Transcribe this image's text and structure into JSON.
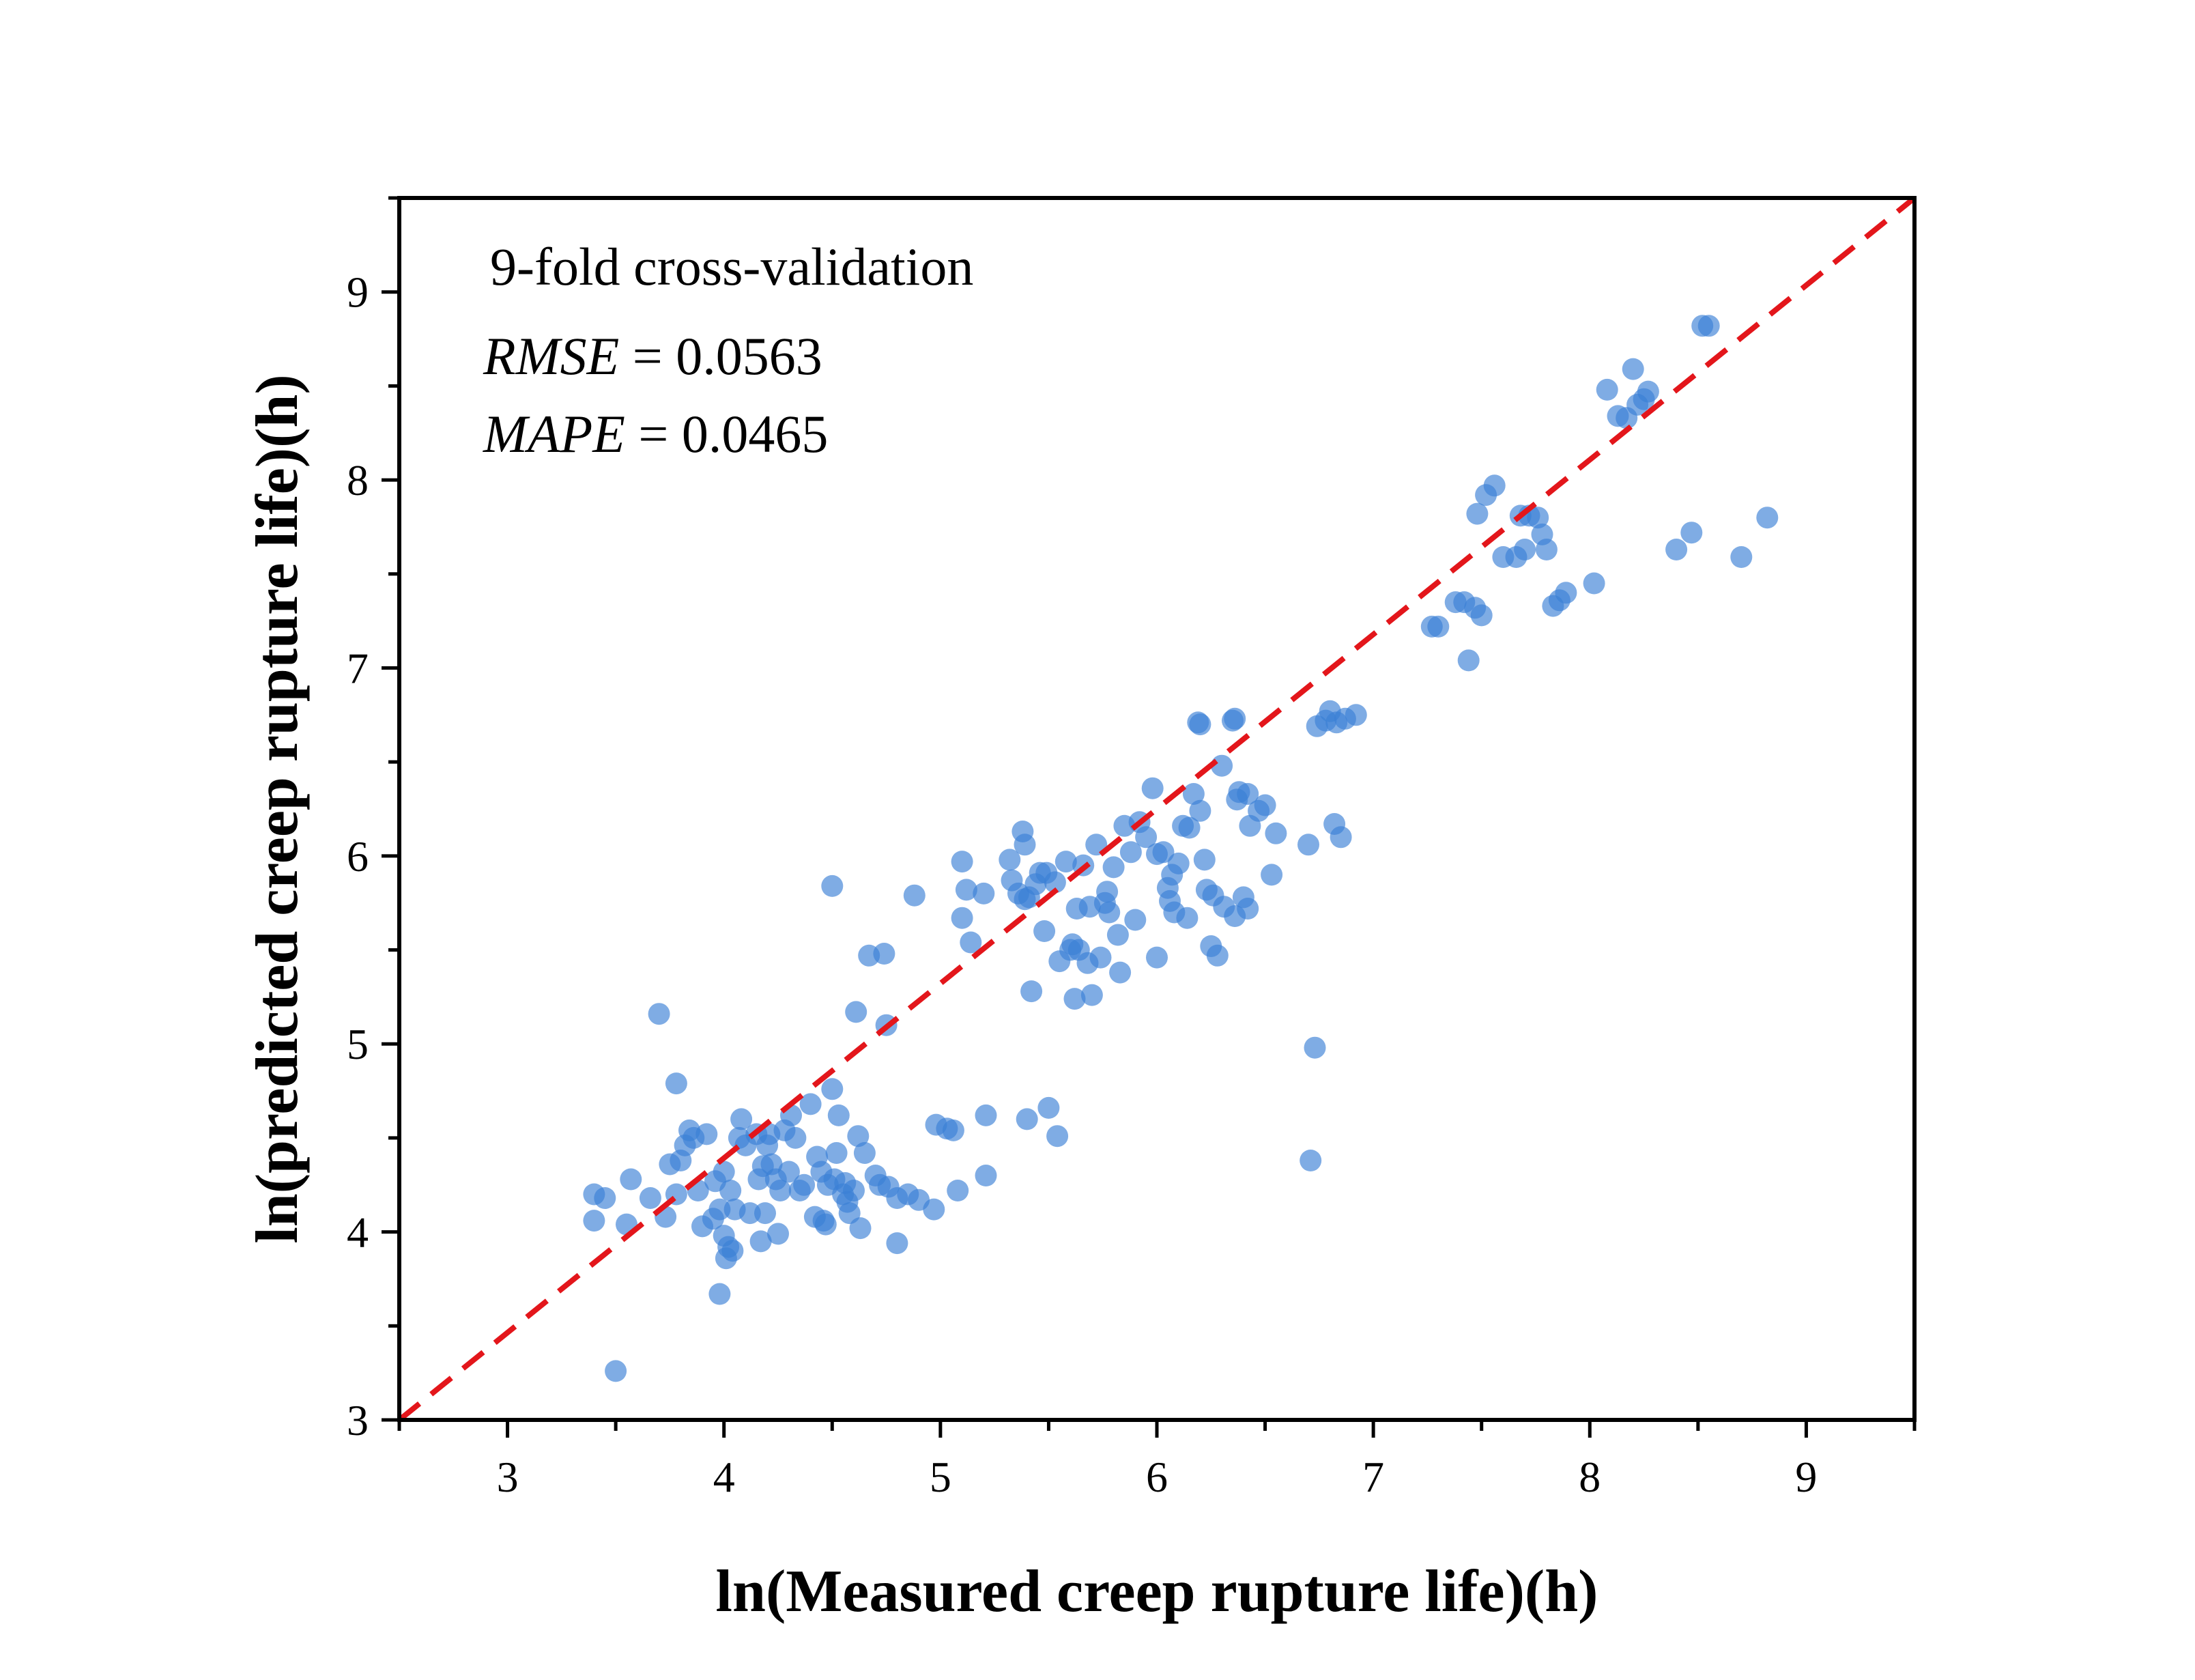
{
  "chart_data": {
    "type": "scatter",
    "xlabel": "ln(Measured creep rupture life)(h)",
    "ylabel": "ln(predicted creep rupture life)(h)",
    "xlim": [
      2.5,
      9.5
    ],
    "ylim": [
      3,
      9.5
    ],
    "xticks": [
      "3",
      "4",
      "5",
      "6",
      "7",
      "8",
      "9"
    ],
    "yticks": [
      "3",
      "4",
      "5",
      "6",
      "7",
      "8",
      "9"
    ],
    "grid": false,
    "annotations": {
      "title_line": "9-fold cross-validation",
      "rmse_label": "RMSE",
      "rmse_value": " = 0.0563",
      "mape_label": "MAPE",
      "mape_value": " = 0.0465"
    },
    "reference_line": {
      "x": [
        2.5,
        9.5
      ],
      "y": [
        3,
        9.5
      ],
      "style": "dashed",
      "color": "#e3161b"
    },
    "point_color": "#3a7fd5",
    "points": [
      [
        3.4,
        4.2
      ],
      [
        3.4,
        4.06
      ],
      [
        3.45,
        4.18
      ],
      [
        3.5,
        3.26
      ],
      [
        3.55,
        4.04
      ],
      [
        3.57,
        4.28
      ],
      [
        3.66,
        4.18
      ],
      [
        3.7,
        5.16
      ],
      [
        3.73,
        4.08
      ],
      [
        3.75,
        4.36
      ],
      [
        3.78,
        4.79
      ],
      [
        3.78,
        4.2
      ],
      [
        3.8,
        4.38
      ],
      [
        3.82,
        4.46
      ],
      [
        3.84,
        4.54
      ],
      [
        3.86,
        4.5
      ],
      [
        3.88,
        4.22
      ],
      [
        3.9,
        4.03
      ],
      [
        3.92,
        4.52
      ],
      [
        3.95,
        4.07
      ],
      [
        3.96,
        4.27
      ],
      [
        3.98,
        4.12
      ],
      [
        3.98,
        3.67
      ],
      [
        4.0,
        3.98
      ],
      [
        4.0,
        4.32
      ],
      [
        4.01,
        3.86
      ],
      [
        4.02,
        3.92
      ],
      [
        4.03,
        4.22
      ],
      [
        4.04,
        3.9
      ],
      [
        4.05,
        4.12
      ],
      [
        4.07,
        4.5
      ],
      [
        4.08,
        4.6
      ],
      [
        4.1,
        4.46
      ],
      [
        4.12,
        4.1
      ],
      [
        4.15,
        4.52
      ],
      [
        4.16,
        4.28
      ],
      [
        4.17,
        3.95
      ],
      [
        4.18,
        4.35
      ],
      [
        4.19,
        4.1
      ],
      [
        4.2,
        4.46
      ],
      [
        4.21,
        4.52
      ],
      [
        4.22,
        4.36
      ],
      [
        4.24,
        4.28
      ],
      [
        4.25,
        3.99
      ],
      [
        4.26,
        4.22
      ],
      [
        4.28,
        4.54
      ],
      [
        4.3,
        4.32
      ],
      [
        4.31,
        4.62
      ],
      [
        4.33,
        4.5
      ],
      [
        4.35,
        4.22
      ],
      [
        4.37,
        4.25
      ],
      [
        4.4,
        4.68
      ],
      [
        4.42,
        4.08
      ],
      [
        4.43,
        4.4
      ],
      [
        4.45,
        4.32
      ],
      [
        4.46,
        4.06
      ],
      [
        4.47,
        4.04
      ],
      [
        4.48,
        4.25
      ],
      [
        4.5,
        5.84
      ],
      [
        4.5,
        4.76
      ],
      [
        4.51,
        4.28
      ],
      [
        4.52,
        4.42
      ],
      [
        4.53,
        4.62
      ],
      [
        4.55,
        4.2
      ],
      [
        4.56,
        4.26
      ],
      [
        4.57,
        4.16
      ],
      [
        4.58,
        4.1
      ],
      [
        4.6,
        4.22
      ],
      [
        4.61,
        5.17
      ],
      [
        4.62,
        4.51
      ],
      [
        4.63,
        4.02
      ],
      [
        4.65,
        4.42
      ],
      [
        4.67,
        5.47
      ],
      [
        4.7,
        4.3
      ],
      [
        4.72,
        4.25
      ],
      [
        4.74,
        5.48
      ],
      [
        4.75,
        5.1
      ],
      [
        4.76,
        4.24
      ],
      [
        4.8,
        4.18
      ],
      [
        4.8,
        3.94
      ],
      [
        4.85,
        4.2
      ],
      [
        4.88,
        5.79
      ],
      [
        4.9,
        4.17
      ],
      [
        4.97,
        4.12
      ],
      [
        4.98,
        4.57
      ],
      [
        5.03,
        4.55
      ],
      [
        5.06,
        4.54
      ],
      [
        5.08,
        4.22
      ],
      [
        5.1,
        5.97
      ],
      [
        5.1,
        5.67
      ],
      [
        5.12,
        5.82
      ],
      [
        5.14,
        5.54
      ],
      [
        5.2,
        5.8
      ],
      [
        5.21,
        4.3
      ],
      [
        5.21,
        4.62
      ],
      [
        5.32,
        5.98
      ],
      [
        5.33,
        5.87
      ],
      [
        5.36,
        5.8
      ],
      [
        5.38,
        6.13
      ],
      [
        5.39,
        6.06
      ],
      [
        5.39,
        5.77
      ],
      [
        5.4,
        4.6
      ],
      [
        5.41,
        5.78
      ],
      [
        5.42,
        5.28
      ],
      [
        5.44,
        5.85
      ],
      [
        5.46,
        5.91
      ],
      [
        5.48,
        5.6
      ],
      [
        5.49,
        5.91
      ],
      [
        5.5,
        4.66
      ],
      [
        5.53,
        5.86
      ],
      [
        5.54,
        4.51
      ],
      [
        5.55,
        5.44
      ],
      [
        5.58,
        5.97
      ],
      [
        5.6,
        5.5
      ],
      [
        5.61,
        5.53
      ],
      [
        5.62,
        5.24
      ],
      [
        5.63,
        5.72
      ],
      [
        5.64,
        5.5
      ],
      [
        5.66,
        5.95
      ],
      [
        5.68,
        5.43
      ],
      [
        5.69,
        5.73
      ],
      [
        5.7,
        5.26
      ],
      [
        5.72,
        6.06
      ],
      [
        5.74,
        5.46
      ],
      [
        5.76,
        5.75
      ],
      [
        5.77,
        5.81
      ],
      [
        5.78,
        5.7
      ],
      [
        5.8,
        5.94
      ],
      [
        5.82,
        5.58
      ],
      [
        5.83,
        5.38
      ],
      [
        5.85,
        6.16
      ],
      [
        5.88,
        6.02
      ],
      [
        5.9,
        5.66
      ],
      [
        5.92,
        6.18
      ],
      [
        5.95,
        6.1
      ],
      [
        5.98,
        6.36
      ],
      [
        6.0,
        5.46
      ],
      [
        6.0,
        6.01
      ],
      [
        6.03,
        6.02
      ],
      [
        6.05,
        5.83
      ],
      [
        6.06,
        5.76
      ],
      [
        6.07,
        5.9
      ],
      [
        6.08,
        5.7
      ],
      [
        6.1,
        5.96
      ],
      [
        6.12,
        6.16
      ],
      [
        6.14,
        5.67
      ],
      [
        6.15,
        6.15
      ],
      [
        6.17,
        6.33
      ],
      [
        6.19,
        6.71
      ],
      [
        6.2,
        6.7
      ],
      [
        6.2,
        6.24
      ],
      [
        6.22,
        5.98
      ],
      [
        6.23,
        5.82
      ],
      [
        6.25,
        5.52
      ],
      [
        6.26,
        5.79
      ],
      [
        6.28,
        5.47
      ],
      [
        6.3,
        6.48
      ],
      [
        6.31,
        5.73
      ],
      [
        6.35,
        6.72
      ],
      [
        6.36,
        6.73
      ],
      [
        6.36,
        5.68
      ],
      [
        6.37,
        6.3
      ],
      [
        6.38,
        6.34
      ],
      [
        6.4,
        5.78
      ],
      [
        6.42,
        5.72
      ],
      [
        6.42,
        6.33
      ],
      [
        6.43,
        6.16
      ],
      [
        6.47,
        6.24
      ],
      [
        6.5,
        6.27
      ],
      [
        6.53,
        5.9
      ],
      [
        6.55,
        6.12
      ],
      [
        6.7,
        6.06
      ],
      [
        6.71,
        4.38
      ],
      [
        6.73,
        4.98
      ],
      [
        6.74,
        6.69
      ],
      [
        6.78,
        6.72
      ],
      [
        6.8,
        6.77
      ],
      [
        6.82,
        6.17
      ],
      [
        6.83,
        6.71
      ],
      [
        6.85,
        6.1
      ],
      [
        6.87,
        6.73
      ],
      [
        6.92,
        6.75
      ],
      [
        7.27,
        7.22
      ],
      [
        7.3,
        7.22
      ],
      [
        7.38,
        7.35
      ],
      [
        7.42,
        7.35
      ],
      [
        7.44,
        7.04
      ],
      [
        7.47,
        7.32
      ],
      [
        7.48,
        7.82
      ],
      [
        7.5,
        7.28
      ],
      [
        7.52,
        7.92
      ],
      [
        7.56,
        7.97
      ],
      [
        7.6,
        7.59
      ],
      [
        7.66,
        7.59
      ],
      [
        7.68,
        7.81
      ],
      [
        7.7,
        7.63
      ],
      [
        7.72,
        7.81
      ],
      [
        7.76,
        7.8
      ],
      [
        7.78,
        7.71
      ],
      [
        7.8,
        7.63
      ],
      [
        7.83,
        7.33
      ],
      [
        7.86,
        7.36
      ],
      [
        7.89,
        7.4
      ],
      [
        8.02,
        7.45
      ],
      [
        8.08,
        8.48
      ],
      [
        8.13,
        8.34
      ],
      [
        8.17,
        8.33
      ],
      [
        8.2,
        8.59
      ],
      [
        8.22,
        8.4
      ],
      [
        8.25,
        8.43
      ],
      [
        8.27,
        8.47
      ],
      [
        8.4,
        7.63
      ],
      [
        8.47,
        7.72
      ],
      [
        8.52,
        8.82
      ],
      [
        8.55,
        8.82
      ],
      [
        8.7,
        7.59
      ],
      [
        8.82,
        7.8
      ]
    ]
  }
}
